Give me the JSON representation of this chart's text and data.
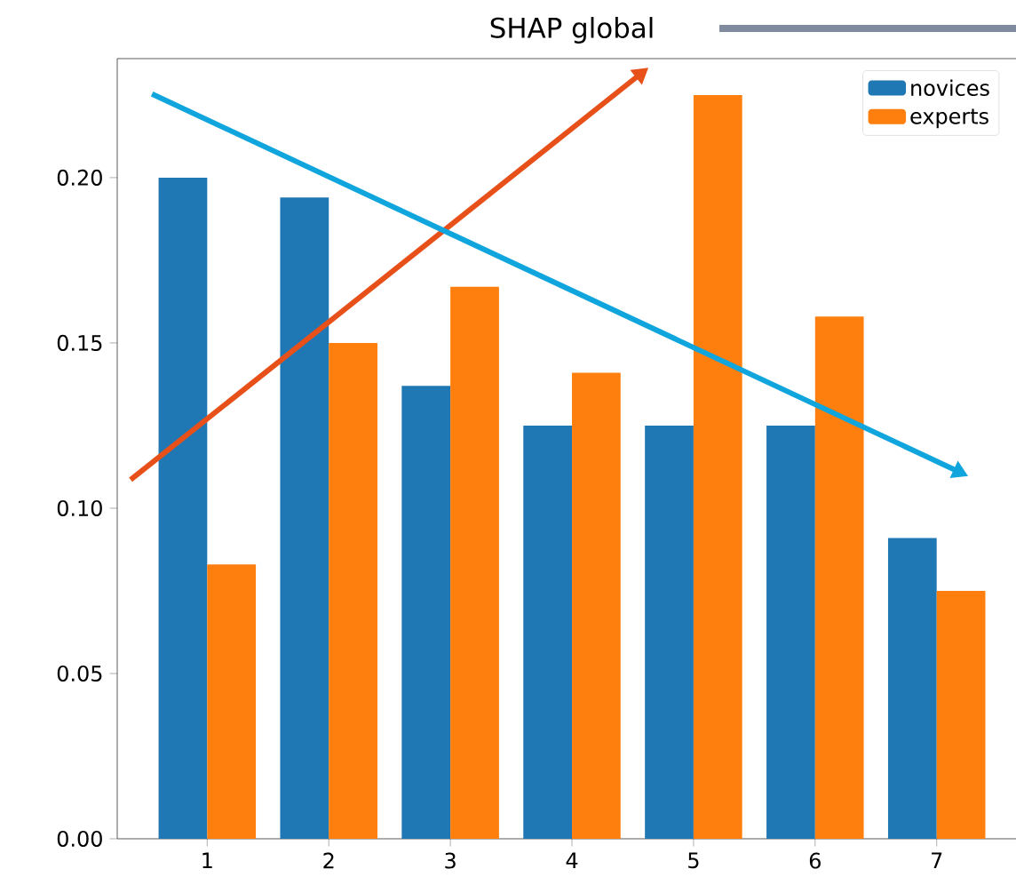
{
  "chart_data": {
    "type": "bar",
    "title": "SHAP global",
    "categories": [
      "1",
      "2",
      "3",
      "4",
      "5",
      "6",
      "7"
    ],
    "series": [
      {
        "name": "novices",
        "color": "#1f77b4",
        "values": [
          0.2,
          0.194,
          0.137,
          0.125,
          0.125,
          0.125,
          0.091
        ]
      },
      {
        "name": "experts",
        "color": "#ff7f0e",
        "values": [
          0.083,
          0.15,
          0.167,
          0.141,
          0.225,
          0.158,
          0.075
        ]
      }
    ],
    "ylim": [
      0,
      0.236
    ],
    "yticks": [
      {
        "value": 0,
        "label": "0.00"
      },
      {
        "value": 0.05,
        "label": "0.05"
      },
      {
        "value": 0.1,
        "label": "0.10"
      },
      {
        "value": 0.15,
        "label": "0.15"
      },
      {
        "value": 0.2,
        "label": "0.20"
      }
    ],
    "legend": "top right"
  }
}
